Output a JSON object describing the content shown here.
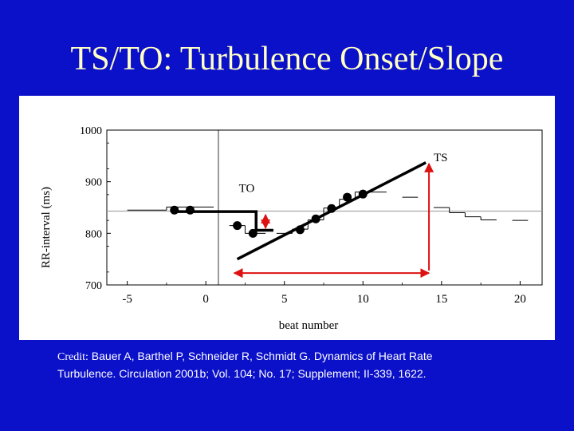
{
  "slide": {
    "title": "TS/TO: Turbulence Onset/Slope",
    "credit_label": "Credit:",
    "credit_line1": "Bauer A, Barthel P, Schneider R, Schmidt G. Dynamics of Heart Rate",
    "credit_line2": "Turbulence. Circulation 2001b; Vol. 104; No. 17; Supplement; II-339, 1622."
  },
  "colors": {
    "background": "#0b10c9",
    "title": "#ffffc4",
    "data": "#000000",
    "reference_line": "#a8a8a8",
    "arrows": "#dd1111"
  },
  "chart_data": {
    "type": "line",
    "xlabel": "beat number",
    "ylabel": "RR-interval (ms)",
    "xlim": [
      -6.3,
      21.4
    ],
    "ylim": [
      700,
      1000
    ],
    "x_ticks": [
      "-5",
      "0",
      "5",
      "10",
      "15",
      "20"
    ],
    "y_ticks": [
      "700",
      "800",
      "900",
      "1000"
    ],
    "vertical_marker_x": 0.8,
    "reference_level": 843,
    "series": [
      {
        "values_x": [
          -2,
          -1,
          2,
          3,
          6,
          7,
          8,
          9,
          10
        ],
        "values_y": [
          845,
          845,
          815,
          800,
          807,
          828,
          848,
          870,
          876
        ]
      }
    ],
    "step_profile": [
      {
        "x0": -5,
        "x1": -2.5,
        "y": 845
      },
      {
        "x0": -2.5,
        "x1": 0.5,
        "y": 851
      },
      {
        "x0": 1.5,
        "x1": 2.5,
        "y": 815
      },
      {
        "x0": 2.5,
        "x1": 3.8,
        "y": 800
      },
      {
        "x0": 4.5,
        "x1": 5.5,
        "y": 800
      },
      {
        "x0": 5.5,
        "x1": 6.5,
        "y": 808
      },
      {
        "x0": 6.5,
        "x1": 7.5,
        "y": 826
      },
      {
        "x0": 7.5,
        "x1": 8.5,
        "y": 849
      },
      {
        "x0": 8.5,
        "x1": 9.5,
        "y": 866
      },
      {
        "x0": 9.5,
        "x1": 11.5,
        "y": 880
      },
      {
        "x0": 12.5,
        "x1": 13.5,
        "y": 870
      },
      {
        "x0": 14.5,
        "x1": 15.5,
        "y": 850
      },
      {
        "x0": 15.5,
        "x1": 16.5,
        "y": 840
      },
      {
        "x0": 16.5,
        "x1": 17.5,
        "y": 832
      },
      {
        "x0": 17.5,
        "x1": 18.5,
        "y": 826
      },
      {
        "x0": 19.5,
        "x1": 20.5,
        "y": 825
      }
    ],
    "to_line": {
      "x": [
        -2,
        3.2
      ],
      "y": [
        842,
        842
      ],
      "drop_to_y": 806,
      "end_x": 4.3
    },
    "ts_line": {
      "x": [
        2.0,
        14.0
      ],
      "y": [
        750,
        937
      ]
    },
    "annotations": [
      {
        "text": "TO",
        "x": 2.1,
        "y": 880
      },
      {
        "text": "TS",
        "x": 14.5,
        "y": 940
      }
    ],
    "arrows": {
      "horizontal": {
        "x0": 1.8,
        "x1": 14.2,
        "y": 723
      },
      "vertical_ts": {
        "x": 14.2,
        "y0": 728,
        "y1": 935
      },
      "vertical_to": {
        "x": 3.8,
        "y0": 810,
        "y1": 836
      }
    }
  }
}
